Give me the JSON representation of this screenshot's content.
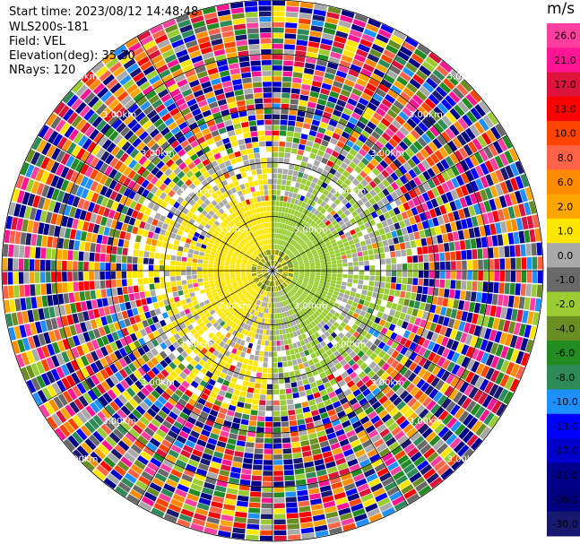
{
  "header": {
    "start_time": "Start time: 2023/08/12 14:48:48",
    "instrument": "WLS200s-181",
    "field": "Field: VEL",
    "elevation": "Elevation(deg): 35.30",
    "nrays": "NRays: 120"
  },
  "chart_data": {
    "type": "heatmap",
    "subtype": "ppi-polar",
    "field": "VEL",
    "n_rays": 120,
    "max_range_km": 5.0,
    "range_rings_km": [
      1.0,
      2.0,
      3.0,
      4.0,
      5.0
    ],
    "ring_label_text": "3.00km",
    "spokes_deg": [
      0,
      30,
      60,
      90,
      120,
      150,
      180,
      210,
      240,
      270,
      300,
      330
    ],
    "colorbar": {
      "unit": "m/s",
      "range": [
        -30,
        30
      ],
      "tick_labels": [
        "26.0",
        "21.0",
        "17.0",
        "13.0",
        "10.0",
        "8.0",
        "6.0",
        "2.0",
        "1.0",
        "0.0",
        "-1.0",
        "-2.0",
        "-4.0",
        "-6.0",
        "-8.0",
        "-10.0",
        "-13.0",
        "-17.0",
        "-21.0",
        "-26.0",
        "-30.0"
      ],
      "bands": [
        {
          "low": 26,
          "high": 30,
          "color": "#ff3fa0"
        },
        {
          "low": 21,
          "high": 26,
          "color": "#ff1493"
        },
        {
          "low": 17,
          "high": 21,
          "color": "#dc143c"
        },
        {
          "low": 13,
          "high": 17,
          "color": "#ff0000"
        },
        {
          "low": 10,
          "high": 13,
          "color": "#ff4500"
        },
        {
          "low": 8,
          "high": 10,
          "color": "#ff6347"
        },
        {
          "low": 6,
          "high": 8,
          "color": "#ff8c00"
        },
        {
          "low": 2,
          "high": 6,
          "color": "#ffa500"
        },
        {
          "low": 1,
          "high": 2,
          "color": "#ffe600"
        },
        {
          "low": 0,
          "high": 1,
          "color": "#a9a9a9"
        },
        {
          "low": -1,
          "high": 0,
          "color": "#696969"
        },
        {
          "low": -2,
          "high": -1,
          "color": "#9acd32"
        },
        {
          "low": -4,
          "high": -2,
          "color": "#6b8e23"
        },
        {
          "low": -6,
          "high": -4,
          "color": "#228b22"
        },
        {
          "low": -8,
          "high": -6,
          "color": "#2e8b57"
        },
        {
          "low": -10,
          "high": -8,
          "color": "#1e90ff"
        },
        {
          "low": -13,
          "high": -10,
          "color": "#0000ff"
        },
        {
          "low": -17,
          "high": -13,
          "color": "#0000cd"
        },
        {
          "low": -21,
          "high": -17,
          "color": "#00008b"
        },
        {
          "low": -26,
          "high": -21,
          "color": "#000080"
        },
        {
          "low": -30,
          "high": -26,
          "color": "#191970"
        }
      ]
    },
    "pattern": {
      "inner_zone_km": 1.3,
      "mid_zone_km": 2.2,
      "west_half_color_low_range": "#ffe600",
      "east_half_color_low_range": "#9acd32",
      "transition_color": "#a9a9a9",
      "far_range": "noise"
    }
  }
}
